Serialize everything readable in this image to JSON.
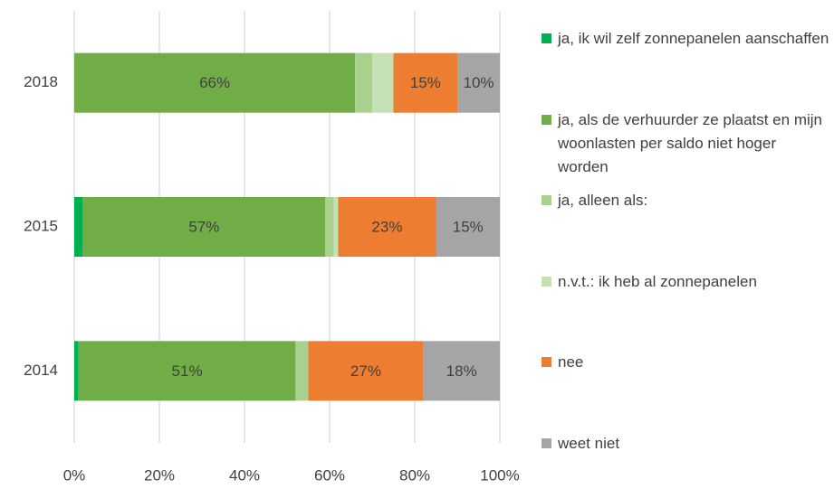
{
  "chart_data": {
    "type": "stacked_barh",
    "categories": [
      "2018",
      "2015",
      "2014"
    ],
    "series": [
      {
        "name": "ja, ik wil zelf zonnepanelen aanschaffen",
        "color": "#00b050",
        "values": [
          0,
          2,
          1
        ],
        "value_labels": [
          null,
          null,
          null
        ]
      },
      {
        "name": "ja, als de verhuurder ze plaatst en mijn woonlasten per saldo niet hoger worden",
        "color": "#70ad47",
        "values": [
          66,
          57,
          51
        ],
        "value_labels": [
          "66%",
          "57%",
          "51%"
        ]
      },
      {
        "name": "ja, alleen als:",
        "color": "#a9d18e",
        "values": [
          4,
          2,
          3
        ],
        "value_labels": [
          null,
          null,
          null
        ]
      },
      {
        "name": "n.v.t.: ik heb al zonnepanelen",
        "color": "#c5e0b4",
        "values": [
          5,
          1,
          0
        ],
        "value_labels": [
          null,
          null,
          null
        ]
      },
      {
        "name": "nee",
        "color": "#ed7d31",
        "values": [
          15,
          23,
          27
        ],
        "value_labels": [
          "15%",
          "23%",
          "27%"
        ]
      },
      {
        "name": "weet niet",
        "color": "#a5a5a5",
        "values": [
          10,
          15,
          18
        ],
        "value_labels": [
          "10%",
          "15%",
          "18%"
        ]
      }
    ],
    "xlim": [
      0,
      100
    ],
    "xticks": [
      {
        "value": 0,
        "label": "0%"
      },
      {
        "value": 20,
        "label": "20%"
      },
      {
        "value": 40,
        "label": "40%"
      },
      {
        "value": 60,
        "label": "60%"
      },
      {
        "value": 80,
        "label": "80%"
      },
      {
        "value": 100,
        "label": "100%"
      }
    ],
    "grid": true,
    "legend": "right"
  }
}
